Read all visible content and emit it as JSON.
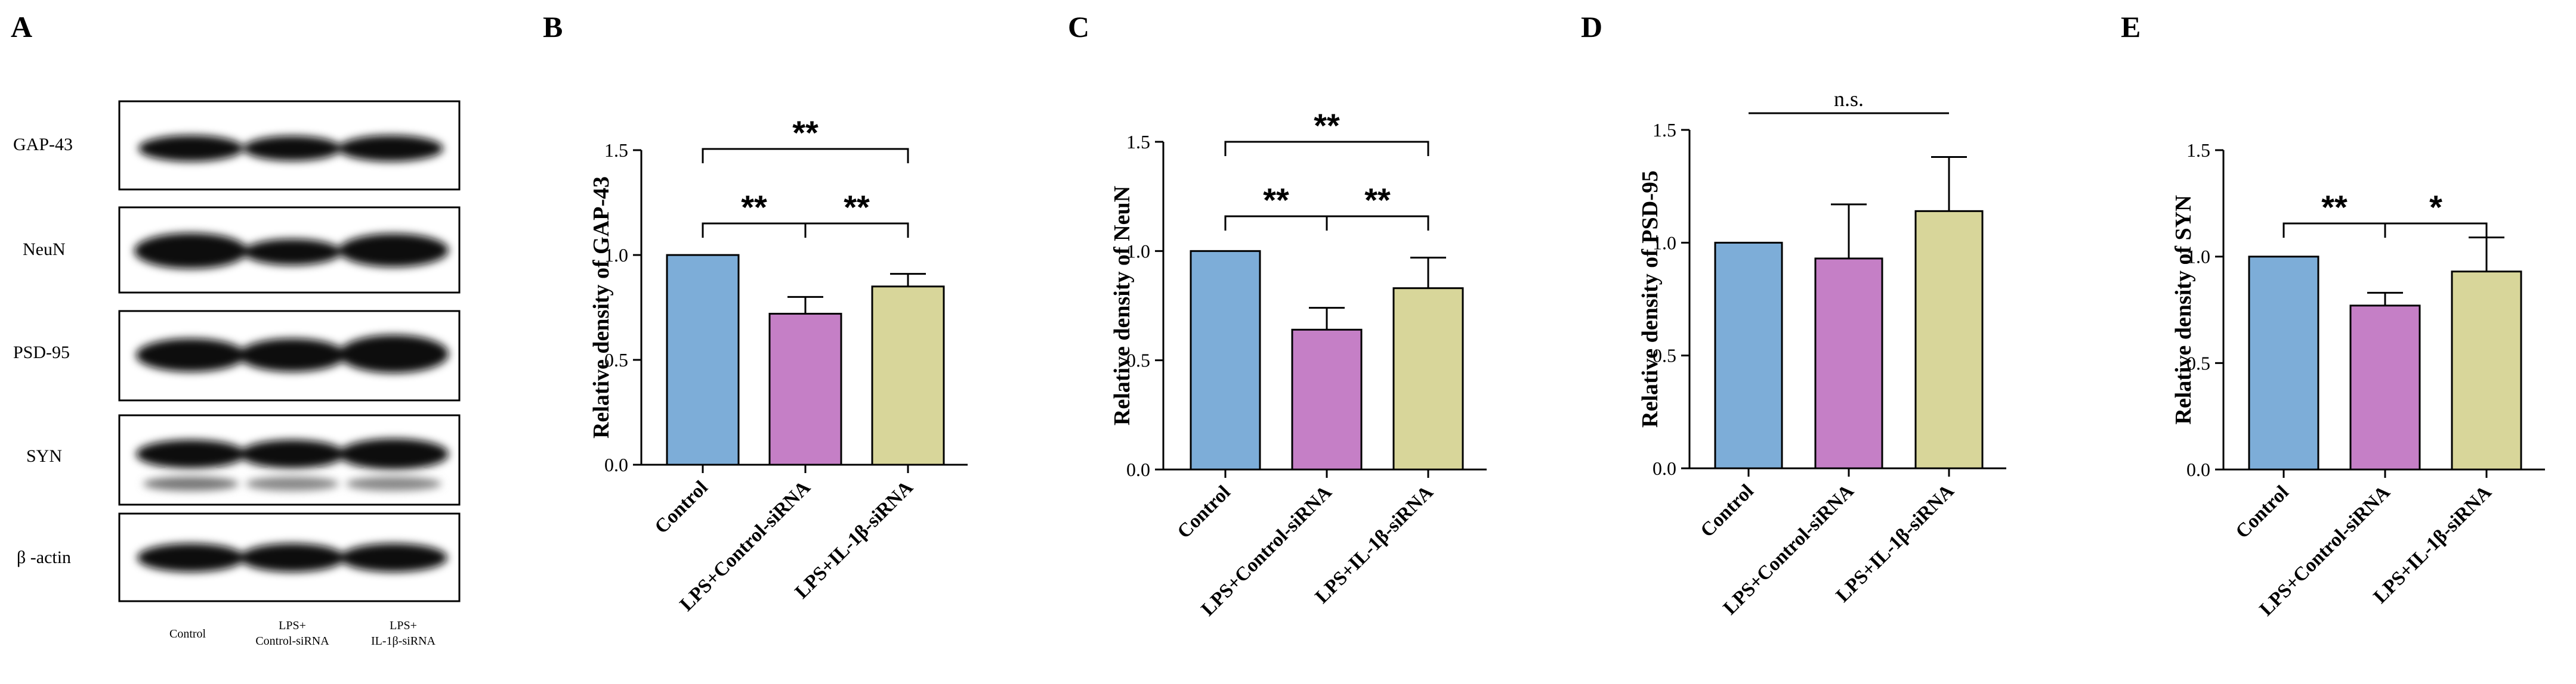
{
  "panels": {
    "a": "A",
    "b": "B",
    "c": "C",
    "d": "D",
    "e": "E"
  },
  "western_blot": {
    "proteins": [
      "GAP-43",
      "NeuN",
      "PSD-95",
      "SYN",
      "β -actin"
    ],
    "lanes": [
      {
        "line1": "Control",
        "line2": ""
      },
      {
        "line1": "LPS+",
        "line2": "Control-siRNA"
      },
      {
        "line1": "LPS+",
        "line2": "IL-1β-siRNA"
      }
    ],
    "band_color": "#111111"
  },
  "colors": {
    "control": "#7dadd8",
    "lps_control_sirna": "#c57fc6",
    "lps_il1b_sirna": "#d8d69a",
    "axis": "#000000"
  },
  "chart_data": [
    {
      "panel": "B",
      "type": "bar",
      "ylabel": "Relative density of GAP-43",
      "categories": [
        "Control",
        "LPS+Control-siRNA",
        "LPS+IL-1β-siRNA"
      ],
      "values": [
        1.0,
        0.72,
        0.85
      ],
      "errors": [
        0.0,
        0.08,
        0.06
      ],
      "ylim": [
        0,
        1.5
      ],
      "yticks": [
        "0.0",
        "0.5",
        "1.0",
        "1.5"
      ],
      "significance": [
        {
          "from": 0,
          "to": 1,
          "label": "**"
        },
        {
          "from": 1,
          "to": 2,
          "label": "**"
        },
        {
          "from": 0,
          "to": 2,
          "label": "**"
        }
      ]
    },
    {
      "panel": "C",
      "type": "bar",
      "ylabel": "Relative density of NeuN",
      "categories": [
        "Control",
        "LPS+Control-siRNA",
        "LPS+IL-1β-siRNA"
      ],
      "values": [
        1.0,
        0.64,
        0.83
      ],
      "errors": [
        0.0,
        0.1,
        0.14
      ],
      "ylim": [
        0,
        1.5
      ],
      "yticks": [
        "0.0",
        "0.5",
        "1.0",
        "1.5"
      ],
      "significance": [
        {
          "from": 0,
          "to": 1,
          "label": "**"
        },
        {
          "from": 1,
          "to": 2,
          "label": "**"
        },
        {
          "from": 0,
          "to": 2,
          "label": "**"
        }
      ]
    },
    {
      "panel": "D",
      "type": "bar",
      "ylabel": "Relative density of PSD-95",
      "categories": [
        "Control",
        "LPS+Control-siRNA",
        "LPS+IL-1β-siRNA"
      ],
      "values": [
        1.0,
        0.93,
        1.14
      ],
      "errors": [
        0.0,
        0.24,
        0.24
      ],
      "ylim": [
        0,
        1.5
      ],
      "yticks": [
        "0.0",
        "0.5",
        "1.0",
        "1.5"
      ],
      "significance": [
        {
          "from": 0,
          "to": 2,
          "label": "n.s."
        }
      ]
    },
    {
      "panel": "E",
      "type": "bar",
      "ylabel": "Relative density of SYN",
      "categories": [
        "Control",
        "LPS+Control-siRNA",
        "LPS+IL-1β-siRNA"
      ],
      "values": [
        1.0,
        0.77,
        0.93
      ],
      "errors": [
        0.0,
        0.06,
        0.16
      ],
      "ylim": [
        0,
        1.5
      ],
      "yticks": [
        "0.0",
        "0.5",
        "1.0",
        "1.5"
      ],
      "significance": [
        {
          "from": 0,
          "to": 1,
          "label": "**"
        },
        {
          "from": 1,
          "to": 2,
          "label": "*"
        }
      ]
    }
  ]
}
